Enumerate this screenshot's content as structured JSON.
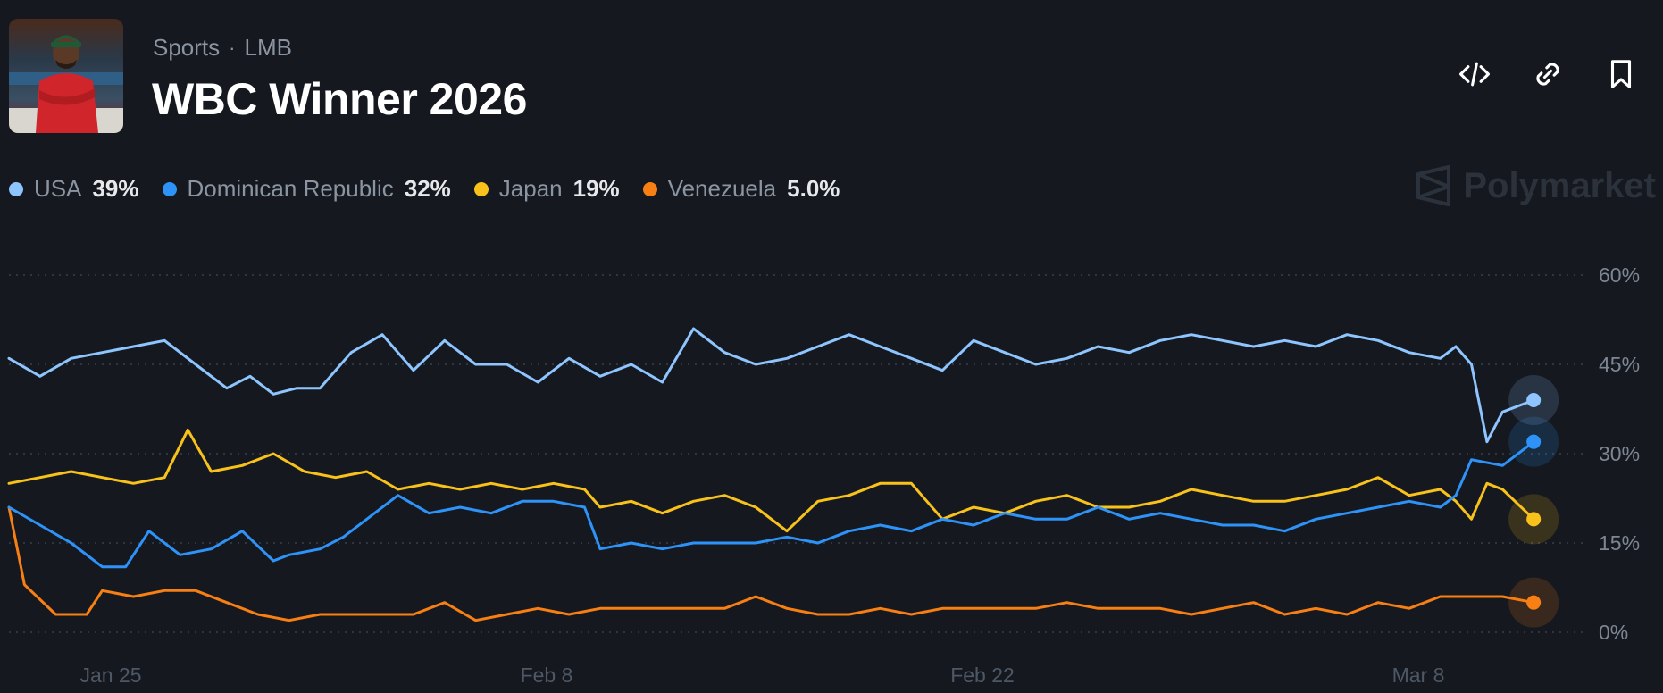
{
  "header": {
    "category": "Sports",
    "separator": "·",
    "league": "LMB",
    "title": "WBC Winner 2026",
    "thumbnail": "baseball-player-photo"
  },
  "actions": [
    {
      "icon": "embed-code-icon"
    },
    {
      "icon": "link-icon"
    },
    {
      "icon": "bookmark-icon"
    }
  ],
  "brand": "Polymarket",
  "colors": {
    "background": "#15191f",
    "usa": "#8ec5ff",
    "dominican": "#2e93f8",
    "japan": "#f9c21a",
    "venezuela": "#f77f13"
  },
  "chart_data": {
    "type": "line",
    "y_ticks": [
      "60%",
      "45%",
      "30%",
      "15%",
      "0%"
    ],
    "x_ticks": [
      "Jan 25",
      "Feb 8",
      "Feb 22",
      "Mar 8"
    ],
    "ylim": [
      0,
      60
    ],
    "grid": true,
    "series": [
      {
        "name": "USA",
        "label": "39%",
        "color": "#8ec5ff",
        "x": [
          0,
          2,
          4,
          6,
          8,
          10,
          12,
          14,
          15.5,
          17,
          18.5,
          20,
          22,
          24,
          26,
          28,
          30,
          32,
          34,
          36,
          38,
          40,
          42,
          44,
          46,
          48,
          50,
          52,
          54,
          56,
          58,
          60,
          62,
          64,
          66,
          68,
          70,
          72,
          74,
          76,
          78,
          80,
          82,
          84,
          86,
          88,
          90,
          92,
          93,
          94,
          95,
          96,
          98
        ],
        "values": [
          46,
          43,
          46,
          47,
          48,
          49,
          45,
          41,
          43,
          40,
          41,
          41,
          47,
          50,
          44,
          49,
          45,
          45,
          42,
          46,
          43,
          45,
          42,
          51,
          47,
          45,
          46,
          48,
          50,
          48,
          46,
          44,
          49,
          47,
          45,
          46,
          48,
          47,
          49,
          50,
          49,
          48,
          49,
          48,
          50,
          49,
          47,
          46,
          48,
          45,
          32,
          37,
          39
        ]
      },
      {
        "name": "Dominican Republic",
        "label": "32%",
        "color": "#2e93f8",
        "x": [
          0,
          2,
          4,
          6,
          7.5,
          9,
          11,
          13,
          15,
          17,
          18,
          20,
          21.5,
          23,
          25,
          27,
          29,
          31,
          33,
          35,
          37,
          38,
          40,
          42,
          44,
          46,
          48,
          50,
          52,
          54,
          56,
          58,
          60,
          62,
          64,
          66,
          68,
          70,
          72,
          74,
          76,
          78,
          80,
          82,
          84,
          86,
          88,
          90,
          92,
          93,
          94,
          96,
          98
        ],
        "values": [
          21,
          18,
          15,
          11,
          11,
          17,
          13,
          14,
          17,
          12,
          13,
          14,
          16,
          19,
          23,
          20,
          21,
          20,
          22,
          22,
          21,
          14,
          15,
          14,
          15,
          15,
          15,
          16,
          15,
          17,
          18,
          17,
          19,
          18,
          20,
          19,
          19,
          21,
          19,
          20,
          19,
          18,
          18,
          17,
          19,
          20,
          21,
          22,
          21,
          23,
          29,
          28,
          32
        ]
      },
      {
        "name": "Japan",
        "label": "19%",
        "color": "#f9c21a",
        "x": [
          0,
          2,
          4,
          6,
          8,
          10,
          11.5,
          13,
          15,
          17,
          19,
          21,
          23,
          25,
          27,
          29,
          31,
          33,
          35,
          37,
          38,
          40,
          42,
          44,
          46,
          48,
          50,
          52,
          54,
          56,
          58,
          60,
          62,
          64,
          66,
          68,
          70,
          72,
          74,
          76,
          78,
          80,
          82,
          84,
          86,
          88,
          90,
          92,
          93,
          94,
          95,
          96,
          98
        ],
        "values": [
          25,
          26,
          27,
          26,
          25,
          26,
          34,
          27,
          28,
          30,
          27,
          26,
          27,
          24,
          25,
          24,
          25,
          24,
          25,
          24,
          21,
          22,
          20,
          22,
          23,
          21,
          17,
          22,
          23,
          25,
          25,
          19,
          21,
          20,
          22,
          23,
          21,
          21,
          22,
          24,
          23,
          22,
          22,
          23,
          24,
          26,
          23,
          24,
          22,
          19,
          25,
          24,
          19
        ]
      },
      {
        "name": "Venezuela",
        "label": "5.0%",
        "color": "#f77f13",
        "x": [
          0,
          1,
          3,
          5,
          6,
          8,
          10,
          12,
          14,
          16,
          18,
          20,
          22,
          24,
          26,
          28,
          30,
          32,
          34,
          36,
          38,
          40,
          42,
          44,
          46,
          48,
          50,
          52,
          54,
          56,
          58,
          60,
          62,
          64,
          66,
          68,
          70,
          72,
          74,
          76,
          78,
          80,
          82,
          84,
          86,
          88,
          90,
          92,
          94,
          96,
          98
        ],
        "values": [
          21,
          8,
          3,
          3,
          7,
          6,
          7,
          7,
          5,
          3,
          2,
          3,
          3,
          3,
          3,
          5,
          2,
          3,
          4,
          3,
          4,
          4,
          4,
          4,
          4,
          6,
          4,
          3,
          3,
          4,
          3,
          4,
          4,
          4,
          4,
          5,
          4,
          4,
          4,
          3,
          4,
          5,
          3,
          4,
          3,
          5,
          4,
          6,
          6,
          6,
          5
        ]
      }
    ]
  }
}
